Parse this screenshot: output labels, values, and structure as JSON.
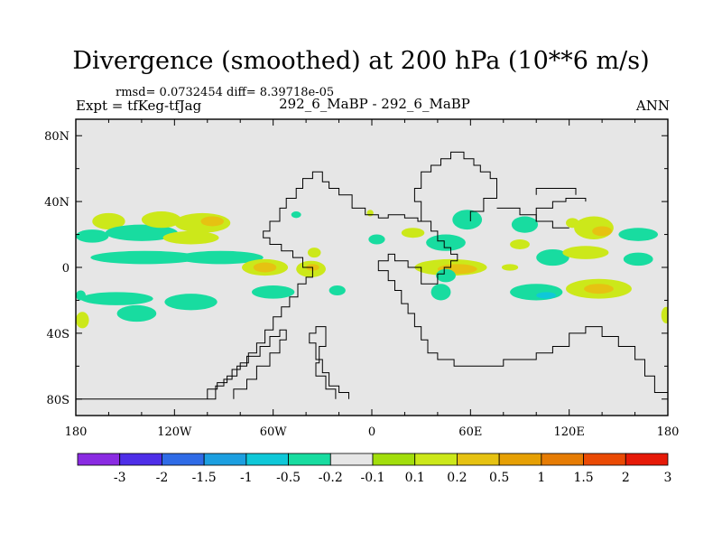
{
  "header": {
    "title": "Divergence (smoothed) at 200 hPa (10**6 m/s)",
    "stats": "rmsd= 0.0732454 diff= 8.39718e-05",
    "experiment": "Expt = tfKeg-tfJag",
    "center_label": "292_6_MaBP - 292_6_MaBP",
    "season": "ANN"
  },
  "chart_data": {
    "type": "heatmap",
    "title": "Divergence (smoothed) at 200 hPa (10**6 m/s)",
    "xlabel": "",
    "ylabel": "",
    "xlim": [
      -180,
      180
    ],
    "ylim": [
      -90,
      90
    ],
    "x_ticks": [
      {
        "value": -180,
        "label": "180"
      },
      {
        "value": -120,
        "label": "120W"
      },
      {
        "value": -60,
        "label": "60W"
      },
      {
        "value": 0,
        "label": "0"
      },
      {
        "value": 60,
        "label": "60E"
      },
      {
        "value": 120,
        "label": "120E"
      },
      {
        "value": 180,
        "label": "180"
      }
    ],
    "y_ticks": [
      {
        "value": 80,
        "label": "80N"
      },
      {
        "value": 40,
        "label": "40N"
      },
      {
        "value": 0,
        "label": "0"
      },
      {
        "value": -40,
        "label": "40S"
      },
      {
        "value": -80,
        "label": "80S"
      }
    ],
    "background_color": "#e6e6e6",
    "colorbar": {
      "labels": [
        "-3",
        "-2",
        "-1.5",
        "-1",
        "-0.5",
        "-0.2",
        "-0.1",
        "0.1",
        "0.2",
        "0.5",
        "1",
        "1.5",
        "2",
        "3"
      ],
      "colors": [
        "#8a2be2",
        "#4e2ee8",
        "#2f6be6",
        "#1c9fe0",
        "#0fc8d8",
        "#18dca0",
        "#e6e6e6",
        "#a2de0c",
        "#cce81a",
        "#e6c212",
        "#e6a004",
        "#e67c04",
        "#ea4a04",
        "#e61a08"
      ]
    },
    "blobs": [
      {
        "lon": -160,
        "lat": 28,
        "rx": 10,
        "ry": 5,
        "level": 0.2
      },
      {
        "lon": -170,
        "lat": 19,
        "rx": 10,
        "ry": 4,
        "level": -0.2
      },
      {
        "lon": -140,
        "lat": 21,
        "rx": 22,
        "ry": 5,
        "level": -0.2
      },
      {
        "lon": -128,
        "lat": 29,
        "rx": 12,
        "ry": 5,
        "level": 0.2
      },
      {
        "lon": -103,
        "lat": 27,
        "rx": 17,
        "ry": 6,
        "level": 0.2
      },
      {
        "lon": -97,
        "lat": 28,
        "rx": 7,
        "ry": 3,
        "level": 0.5
      },
      {
        "lon": -110,
        "lat": 18,
        "rx": 17,
        "ry": 4,
        "level": 0.2
      },
      {
        "lon": -138,
        "lat": 6,
        "rx": 33,
        "ry": 4,
        "level": -0.2
      },
      {
        "lon": -92,
        "lat": 6,
        "rx": 26,
        "ry": 4,
        "level": -0.2
      },
      {
        "lon": -65,
        "lat": 0,
        "rx": 14,
        "ry": 5,
        "level": 0.2
      },
      {
        "lon": -65,
        "lat": 0,
        "rx": 7,
        "ry": 3,
        "level": 0.5
      },
      {
        "lon": -37,
        "lat": -1,
        "rx": 9,
        "ry": 5,
        "level": 0.2
      },
      {
        "lon": -36,
        "lat": 0,
        "rx": 4,
        "ry": 2,
        "level": 0.5
      },
      {
        "lon": -35,
        "lat": 9,
        "rx": 4,
        "ry": 3,
        "level": 0.2
      },
      {
        "lon": -155,
        "lat": -19,
        "rx": 22,
        "ry": 4,
        "level": -0.2
      },
      {
        "lon": -177,
        "lat": -17,
        "rx": 3,
        "ry": 3,
        "level": -0.2
      },
      {
        "lon": -110,
        "lat": -21,
        "rx": 16,
        "ry": 5,
        "level": -0.2
      },
      {
        "lon": -143,
        "lat": -28,
        "rx": 12,
        "ry": 5,
        "level": -0.2
      },
      {
        "lon": -176,
        "lat": -32,
        "rx": 4,
        "ry": 5,
        "level": 0.2
      },
      {
        "lon": -60,
        "lat": -15,
        "rx": 13,
        "ry": 4,
        "level": -0.2
      },
      {
        "lon": -21,
        "lat": -14,
        "rx": 5,
        "ry": 3,
        "level": -0.2
      },
      {
        "lon": -46,
        "lat": 32,
        "rx": 3,
        "ry": 2,
        "level": -0.2
      },
      {
        "lon": -1,
        "lat": 33,
        "rx": 2,
        "ry": 2,
        "level": 0.2
      },
      {
        "lon": 3,
        "lat": 17,
        "rx": 5,
        "ry": 3,
        "level": -0.2
      },
      {
        "lon": 25,
        "lat": 21,
        "rx": 7,
        "ry": 3,
        "level": 0.2
      },
      {
        "lon": 58,
        "lat": 29,
        "rx": 9,
        "ry": 6,
        "level": -0.2
      },
      {
        "lon": 45,
        "lat": 15,
        "rx": 12,
        "ry": 5,
        "level": -0.2
      },
      {
        "lon": 48,
        "lat": 0,
        "rx": 22,
        "ry": 5,
        "level": 0.2
      },
      {
        "lon": 52,
        "lat": -1,
        "rx": 12,
        "ry": 3,
        "level": 0.5
      },
      {
        "lon": 93,
        "lat": 26,
        "rx": 8,
        "ry": 5,
        "level": -0.2
      },
      {
        "lon": 122,
        "lat": 27,
        "rx": 4,
        "ry": 3,
        "level": 0.2
      },
      {
        "lon": 135,
        "lat": 24,
        "rx": 12,
        "ry": 7,
        "level": 0.2
      },
      {
        "lon": 140,
        "lat": 22,
        "rx": 6,
        "ry": 3,
        "level": 0.5
      },
      {
        "lon": 162,
        "lat": 20,
        "rx": 12,
        "ry": 4,
        "level": -0.2
      },
      {
        "lon": 90,
        "lat": 14,
        "rx": 6,
        "ry": 3,
        "level": 0.2
      },
      {
        "lon": 110,
        "lat": 6,
        "rx": 10,
        "ry": 5,
        "level": -0.2
      },
      {
        "lon": 130,
        "lat": 9,
        "rx": 14,
        "ry": 4,
        "level": 0.2
      },
      {
        "lon": 162,
        "lat": 5,
        "rx": 9,
        "ry": 4,
        "level": -0.2
      },
      {
        "lon": 84,
        "lat": 0,
        "rx": 5,
        "ry": 2,
        "level": 0.2
      },
      {
        "lon": 100,
        "lat": -15,
        "rx": 16,
        "ry": 5,
        "level": -0.2
      },
      {
        "lon": 138,
        "lat": -13,
        "rx": 20,
        "ry": 6,
        "level": 0.2
      },
      {
        "lon": 138,
        "lat": -13,
        "rx": 9,
        "ry": 3,
        "level": 0.5
      },
      {
        "lon": 106,
        "lat": -17,
        "rx": 6,
        "ry": 2,
        "level": -0.5
      },
      {
        "lon": 179,
        "lat": -29,
        "rx": 3,
        "ry": 5,
        "level": 0.2
      },
      {
        "lon": 42,
        "lat": -15,
        "rx": 6,
        "ry": 5,
        "level": -0.2
      },
      {
        "lon": 45,
        "lat": -5,
        "rx": 6,
        "ry": 4,
        "level": -0.2
      }
    ],
    "coastlines": [
      [
        [
          -180,
          -80
        ],
        [
          -95,
          -80
        ],
        [
          -95,
          -72
        ],
        [
          -90,
          -72
        ],
        [
          -90,
          -68
        ],
        [
          -85,
          -68
        ],
        [
          -85,
          -62
        ],
        [
          -80,
          -62
        ],
        [
          -80,
          -58
        ],
        [
          -75,
          -58
        ],
        [
          -75,
          -52
        ],
        [
          -70,
          -52
        ],
        [
          -70,
          -46
        ],
        [
          -65,
          -46
        ],
        [
          -65,
          -38
        ],
        [
          -60,
          -38
        ],
        [
          -60,
          -30
        ],
        [
          -55,
          -30
        ],
        [
          -55,
          -24
        ],
        [
          -50,
          -24
        ],
        [
          -50,
          -18
        ],
        [
          -45,
          -18
        ],
        [
          -45,
          -10
        ],
        [
          -40,
          -10
        ],
        [
          -40,
          -6
        ],
        [
          -36,
          -6
        ],
        [
          -36,
          0
        ],
        [
          -42,
          0
        ],
        [
          -42,
          6
        ],
        [
          -48,
          6
        ],
        [
          -48,
          10
        ],
        [
          -55,
          10
        ],
        [
          -55,
          14
        ],
        [
          -62,
          14
        ],
        [
          -62,
          18
        ],
        [
          -66,
          18
        ],
        [
          -66,
          22
        ],
        [
          -62,
          22
        ],
        [
          -62,
          28
        ],
        [
          -56,
          28
        ],
        [
          -56,
          36
        ],
        [
          -52,
          36
        ],
        [
          -52,
          42
        ],
        [
          -46,
          42
        ],
        [
          -46,
          48
        ],
        [
          -42,
          48
        ],
        [
          -42,
          54
        ],
        [
          -36,
          54
        ],
        [
          -36,
          58
        ],
        [
          -30,
          58
        ],
        [
          -30,
          52
        ],
        [
          -26,
          52
        ],
        [
          -26,
          48
        ],
        [
          -20,
          48
        ],
        [
          -20,
          44
        ],
        [
          -12,
          44
        ],
        [
          -12,
          36
        ],
        [
          -4,
          36
        ],
        [
          -4,
          32
        ],
        [
          4,
          32
        ],
        [
          4,
          30
        ],
        [
          10,
          30
        ],
        [
          10,
          32
        ],
        [
          20,
          32
        ],
        [
          20,
          30
        ],
        [
          28,
          30
        ],
        [
          28,
          28
        ],
        [
          36,
          28
        ],
        [
          36,
          22
        ],
        [
          40,
          22
        ],
        [
          40,
          16
        ],
        [
          44,
          16
        ],
        [
          44,
          12
        ],
        [
          48,
          12
        ],
        [
          48,
          8
        ],
        [
          52,
          8
        ],
        [
          52,
          4
        ],
        [
          48,
          4
        ],
        [
          48,
          0
        ],
        [
          44,
          0
        ],
        [
          44,
          -4
        ],
        [
          40,
          -4
        ],
        [
          40,
          -10
        ],
        [
          30,
          -10
        ],
        [
          30,
          0
        ],
        [
          22,
          0
        ],
        [
          22,
          4
        ],
        [
          14,
          4
        ],
        [
          14,
          8
        ],
        [
          10,
          8
        ],
        [
          10,
          4
        ],
        [
          4,
          4
        ],
        [
          4,
          -2
        ],
        [
          10,
          -2
        ],
        [
          10,
          -8
        ],
        [
          14,
          -8
        ],
        [
          14,
          -14
        ],
        [
          18,
          -14
        ],
        [
          18,
          -22
        ],
        [
          22,
          -22
        ],
        [
          22,
          -28
        ],
        [
          26,
          -28
        ],
        [
          26,
          -36
        ],
        [
          30,
          -36
        ],
        [
          30,
          -44
        ],
        [
          34,
          -44
        ],
        [
          34,
          -52
        ],
        [
          40,
          -52
        ],
        [
          40,
          -56
        ],
        [
          50,
          -56
        ],
        [
          50,
          -60
        ],
        [
          80,
          -60
        ],
        [
          80,
          -56
        ],
        [
          100,
          -56
        ],
        [
          100,
          -52
        ],
        [
          110,
          -52
        ],
        [
          110,
          -48
        ],
        [
          120,
          -48
        ],
        [
          120,
          -40
        ],
        [
          130,
          -40
        ],
        [
          130,
          -36
        ],
        [
          140,
          -36
        ],
        [
          140,
          -42
        ],
        [
          150,
          -42
        ],
        [
          150,
          -48
        ],
        [
          160,
          -48
        ],
        [
          160,
          -56
        ],
        [
          166,
          -56
        ],
        [
          166,
          -66
        ],
        [
          172,
          -66
        ],
        [
          172,
          -76
        ],
        [
          180,
          -76
        ]
      ],
      [
        [
          -14,
          -80
        ],
        [
          -14,
          -76
        ],
        [
          -20,
          -76
        ],
        [
          -20,
          -72
        ],
        [
          -26,
          -72
        ],
        [
          -26,
          -64
        ],
        [
          -30,
          -64
        ],
        [
          -30,
          -56
        ],
        [
          -34,
          -56
        ],
        [
          -34,
          -46
        ],
        [
          -38,
          -46
        ],
        [
          -38,
          -40
        ],
        [
          -34,
          -40
        ],
        [
          -34,
          -36
        ],
        [
          -28,
          -36
        ],
        [
          -28,
          -48
        ],
        [
          -32,
          -48
        ],
        [
          -32,
          -58
        ],
        [
          -34,
          -58
        ],
        [
          -34,
          -66
        ],
        [
          -28,
          -66
        ],
        [
          -28,
          -74
        ],
        [
          -22,
          -74
        ],
        [
          -22,
          -80
        ]
      ],
      [
        [
          -100,
          -80
        ],
        [
          -100,
          -74
        ],
        [
          -94,
          -74
        ],
        [
          -94,
          -70
        ],
        [
          -88,
          -70
        ],
        [
          -88,
          -66
        ],
        [
          -82,
          -66
        ],
        [
          -82,
          -60
        ],
        [
          -76,
          -60
        ],
        [
          -76,
          -54
        ],
        [
          -68,
          -54
        ],
        [
          -68,
          -48
        ],
        [
          -62,
          -48
        ],
        [
          -62,
          -42
        ],
        [
          -56,
          -42
        ],
        [
          -56,
          -38
        ],
        [
          -52,
          -38
        ],
        [
          -52,
          -44
        ],
        [
          -56,
          -44
        ],
        [
          -56,
          -52
        ],
        [
          -62,
          -52
        ],
        [
          -62,
          -60
        ],
        [
          -70,
          -60
        ],
        [
          -70,
          -68
        ],
        [
          -76,
          -68
        ],
        [
          -76,
          -74
        ],
        [
          -84,
          -74
        ],
        [
          -84,
          -80
        ]
      ],
      [
        [
          30,
          28
        ],
        [
          30,
          40
        ],
        [
          26,
          40
        ],
        [
          26,
          48
        ],
        [
          30,
          48
        ],
        [
          30,
          58
        ],
        [
          36,
          58
        ],
        [
          36,
          62
        ],
        [
          42,
          62
        ],
        [
          42,
          66
        ],
        [
          48,
          66
        ],
        [
          48,
          70
        ],
        [
          56,
          70
        ],
        [
          56,
          66
        ],
        [
          62,
          66
        ],
        [
          62,
          62
        ],
        [
          66,
          62
        ],
        [
          66,
          58
        ],
        [
          72,
          58
        ],
        [
          72,
          54
        ],
        [
          76,
          54
        ],
        [
          76,
          42
        ],
        [
          68,
          42
        ],
        [
          68,
          34
        ],
        [
          60,
          34
        ],
        [
          60,
          28
        ]
      ],
      [
        [
          76,
          36
        ],
        [
          90,
          36
        ],
        [
          90,
          32
        ],
        [
          100,
          32
        ],
        [
          100,
          28
        ],
        [
          110,
          28
        ],
        [
          110,
          24
        ],
        [
          120,
          24
        ]
      ],
      [
        [
          100,
          28
        ],
        [
          100,
          36
        ],
        [
          110,
          36
        ],
        [
          110,
          40
        ],
        [
          118,
          40
        ],
        [
          118,
          42
        ],
        [
          130,
          42
        ],
        [
          130,
          40
        ]
      ],
      [
        [
          100,
          44
        ],
        [
          100,
          48
        ],
        [
          124,
          48
        ],
        [
          124,
          44
        ]
      ]
    ]
  }
}
